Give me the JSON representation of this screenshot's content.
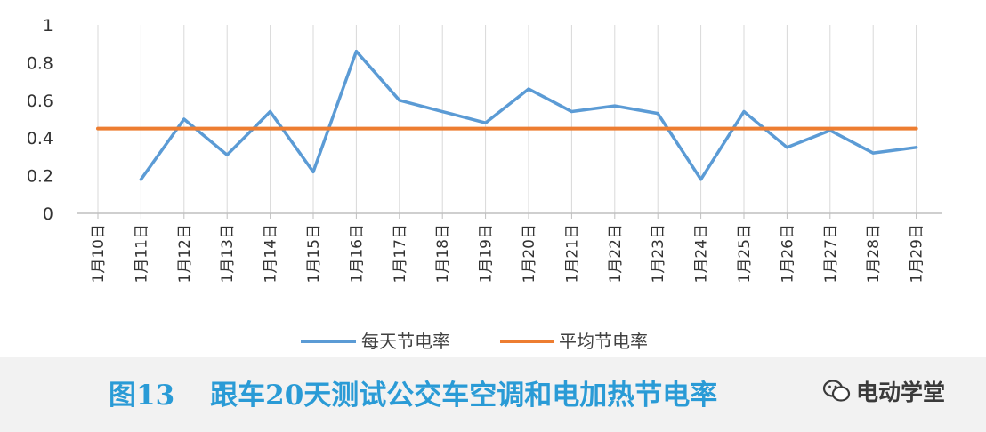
{
  "chart_data": {
    "type": "line",
    "categories": [
      "1月10日",
      "1月11日",
      "1月12日",
      "1月13日",
      "1月14日",
      "1月15日",
      "1月16日",
      "1月17日",
      "1月18日",
      "1月19日",
      "1月20日",
      "1月21日",
      "1月22日",
      "1月23日",
      "1月24日",
      "1月25日",
      "1月26日",
      "1月27日",
      "1月28日",
      "1月29日"
    ],
    "series": [
      {
        "name": "每天节电率",
        "color": "#5b9bd5",
        "values": [
          null,
          0.18,
          0.5,
          0.31,
          0.54,
          0.22,
          0.86,
          0.6,
          0.54,
          0.48,
          0.66,
          0.54,
          0.57,
          0.53,
          0.18,
          0.54,
          0.35,
          0.44,
          0.32,
          0.35
        ]
      },
      {
        "name": "平均节电率",
        "color": "#ed7d31",
        "values": [
          0.45,
          0.45,
          0.45,
          0.45,
          0.45,
          0.45,
          0.45,
          0.45,
          0.45,
          0.45,
          0.45,
          0.45,
          0.45,
          0.45,
          0.45,
          0.45,
          0.45,
          0.45,
          0.45,
          0.45
        ]
      }
    ],
    "yticks": [
      "0",
      "0.2",
      "0.4",
      "0.6",
      "0.8",
      "1"
    ],
    "ylim": [
      0,
      1
    ],
    "grid": "vertical",
    "legend": "bottom",
    "xlabel": "",
    "ylabel": ""
  },
  "caption": {
    "figure_number": "图13",
    "text": "跟车20天测试公交车空调和电加热节电率"
  },
  "watermark": {
    "text": "电动学堂",
    "icon": "wechat-icon"
  }
}
